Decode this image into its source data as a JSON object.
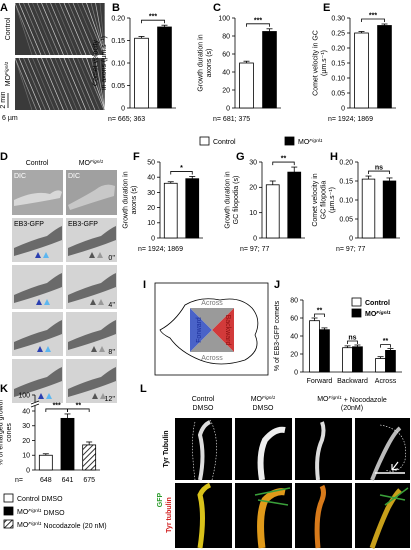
{
  "panel_labels": {
    "a": "A",
    "b": "B",
    "c": "C",
    "e": "E",
    "d": "D",
    "f": "F",
    "g": "G",
    "h": "H",
    "i": "I",
    "j": "J",
    "k": "K",
    "l": "L"
  },
  "panel_a": {
    "rows": [
      {
        "name": "Control"
      },
      {
        "name": "MO",
        "name_sup": "Fignl1"
      }
    ],
    "time_scale": "2 min",
    "space_scale": "6 µm"
  },
  "legend": [
    {
      "name": "Control",
      "color": "#ffffff"
    },
    {
      "name": "MO",
      "name_sup": "Fignl1",
      "color": "#000000"
    }
  ],
  "panel_d": {
    "columns": [
      {
        "name": "Control"
      },
      {
        "name": "MO",
        "name_sup": "Fignl1"
      }
    ],
    "dic": "DIC",
    "eb3": "EB3-GFP",
    "times": [
      "0''",
      "4''",
      "8''",
      "12''"
    ]
  },
  "panel_i": {
    "labels": [
      "Across",
      "Forward",
      "Backward",
      "Across"
    ]
  },
  "panel_l": {
    "columns": [
      [
        {
          "name": "Control"
        },
        {
          "name": "DMSO"
        }
      ],
      [
        {
          "name": "MO",
          "name_sup": "Fignl1"
        },
        {
          "name": "DMSO"
        }
      ],
      [
        {
          "name": "MO",
          "name_sup": "Fignl1",
          "name_rest": " + Nocodazole"
        },
        {
          "name": "(20nM)"
        }
      ]
    ],
    "row_label": "Tyr Tubulin",
    "gfp": "GFP",
    "tyr": "Tyr tubulin"
  },
  "chart_data": [
    {
      "type": "bar",
      "ylabel": [
        "Comet velocity",
        "in axons (µm.s⁻¹)"
      ],
      "values": [
        0.155,
        0.18
      ],
      "errors": [
        0.004,
        0.004
      ],
      "colors": [
        "#ffffff",
        "#000000"
      ],
      "ylim": [
        0,
        0.2
      ],
      "yticks": [
        0,
        0.05,
        {
          "value": 0.1,
          "label": "0.10"
        },
        0.15,
        {
          "value": 0.2,
          "label": "0.20"
        }
      ],
      "annotation": "***",
      "n_label": "n= 665; 363"
    },
    {
      "type": "bar",
      "ylabel": [
        "Growth duration in",
        "axons (s)"
      ],
      "values": [
        50,
        85
      ],
      "errors": [
        2,
        3
      ],
      "colors": [
        "#ffffff",
        "#000000"
      ],
      "ylim": [
        0,
        100
      ],
      "yticks": [
        0,
        20,
        40,
        60,
        80,
        100
      ],
      "annotation": "***",
      "n_label": "n= 681; 375"
    },
    {
      "type": "bar",
      "ylabel": [
        "Comet velocity in GC",
        "(µm.s⁻¹)"
      ],
      "values": [
        0.25,
        0.275
      ],
      "errors": [
        0.005,
        0.005
      ],
      "colors": [
        "#ffffff",
        "#000000"
      ],
      "ylim": [
        0,
        0.3
      ],
      "yticks": [
        0,
        0.05,
        {
          "value": 0.1,
          "label": "0.10"
        },
        0.15,
        {
          "value": 0.2,
          "label": "0.20"
        },
        0.25,
        {
          "value": 0.3,
          "label": "0.30"
        }
      ],
      "annotation": "***",
      "n_label": "n= 1924; 1869"
    },
    {
      "type": "bar",
      "ylabel": [
        "Growth duration in",
        "axons (s)"
      ],
      "values": [
        36,
        39
      ],
      "errors": [
        1,
        1.5
      ],
      "colors": [
        "#ffffff",
        "#000000"
      ],
      "ylim": [
        0,
        50
      ],
      "yticks": [
        0,
        10,
        20,
        30,
        40,
        50
      ],
      "annotation": "*",
      "n_label": "n= 1924; 1869"
    },
    {
      "type": "bar",
      "ylabel": [
        "Growth duration in",
        "GC filopodia (s)"
      ],
      "values": [
        21,
        26
      ],
      "errors": [
        1.5,
        2
      ],
      "colors": [
        "#ffffff",
        "#000000"
      ],
      "ylim": [
        0,
        30
      ],
      "yticks": [
        0,
        10,
        20,
        30
      ],
      "annotation": "**",
      "n_label": "n= 97; 77"
    },
    {
      "type": "bar",
      "ylabel": [
        "Comet velocity in",
        "GC filopodia",
        "(µm.s⁻¹)"
      ],
      "values": [
        0.155,
        0.15
      ],
      "errors": [
        0.008,
        0.008
      ],
      "colors": [
        "#ffffff",
        "#000000"
      ],
      "ylim": [
        0,
        0.2
      ],
      "yticks": [
        0,
        0.05,
        {
          "value": 0.1,
          "label": "0.10"
        },
        0.15,
        {
          "value": 0.2,
          "label": "0.20"
        }
      ],
      "annotation": "ns",
      "n_label": "n= 97; 77"
    },
    {
      "type": "grouped_bar",
      "ylabel": [
        "% of EB3-GFP comets"
      ],
      "categories": [
        "Forward",
        "Backward",
        "Across"
      ],
      "series": [
        {
          "name": "Control",
          "color": "#ffffff",
          "values": [
            57,
            27,
            15
          ],
          "errors": [
            3,
            2,
            2
          ]
        },
        {
          "name": "MO",
          "name_sup": "Fignl1",
          "color": "#000000",
          "values": [
            47,
            28,
            24
          ],
          "errors": [
            2,
            2,
            2
          ]
        }
      ],
      "ylim": [
        0,
        80
      ],
      "yticks": [
        0,
        20,
        40,
        60,
        80
      ],
      "annotations": [
        "**",
        "ns",
        "**"
      ],
      "legend": "upper right"
    },
    {
      "type": "broken_bar",
      "ylabel": [
        "% of enlarged growth",
        "cones"
      ],
      "values": [
        10,
        35,
        17
      ],
      "errors": [
        1,
        3,
        2
      ],
      "colors": [
        "#ffffff",
        "#000000",
        "#ffffff"
      ],
      "hatched": [
        false,
        false,
        true
      ],
      "ylim": [
        0,
        100
      ],
      "yticks": [
        0,
        10,
        20,
        30,
        40,
        100
      ],
      "axis_break": [
        40,
        100
      ],
      "annotations": [
        "***",
        "**"
      ],
      "n_label": "n=",
      "n_values": [
        "648",
        "641",
        "675"
      ],
      "legend": [
        {
          "name": "Control DMSO"
        },
        {
          "name": "MO",
          "name_sup": "Fignl1",
          "name_rest": " DMSO"
        },
        {
          "name": "MO",
          "name_sup": "Fignl1",
          "name_rest": " Nocodazole (20 nM)"
        }
      ]
    }
  ]
}
